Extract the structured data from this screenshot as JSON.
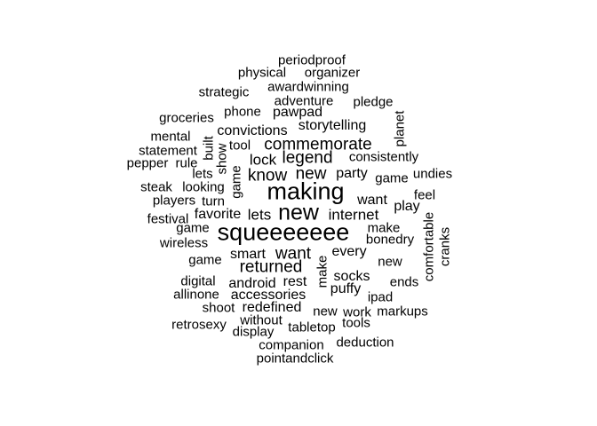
{
  "words": [
    "periodproof",
    "physical",
    "organizer",
    "strategic",
    "awardwinning",
    "adventure",
    "pledge",
    "groceries",
    "phone",
    "pawpad",
    "storytelling",
    "planet",
    "mental",
    "convictions",
    "built",
    "tool",
    "commemorate",
    "statement",
    "show",
    "lock",
    "legend",
    "consistently",
    "pepper",
    "rule",
    "undies",
    "lets",
    "game",
    "know",
    "new",
    "party",
    "game",
    "steak",
    "looking",
    "making",
    "players",
    "turn",
    "feel",
    "want",
    "play",
    "festival",
    "favorite",
    "lets",
    "new",
    "internet",
    "comfortable",
    "game",
    "make",
    "cranks",
    "wireless",
    "squeeeeeee",
    "bonedry",
    "game",
    "smart",
    "want",
    "every",
    "new",
    "returned",
    "make",
    "digital",
    "android",
    "rest",
    "socks",
    "ends",
    "allinone",
    "accessories",
    "puffy",
    "ipad",
    "shoot",
    "redefined",
    "new",
    "work",
    "markups",
    "without",
    "tools",
    "retrosexy",
    "tabletop",
    "display",
    "companion",
    "deduction",
    "pointandclick"
  ]
}
